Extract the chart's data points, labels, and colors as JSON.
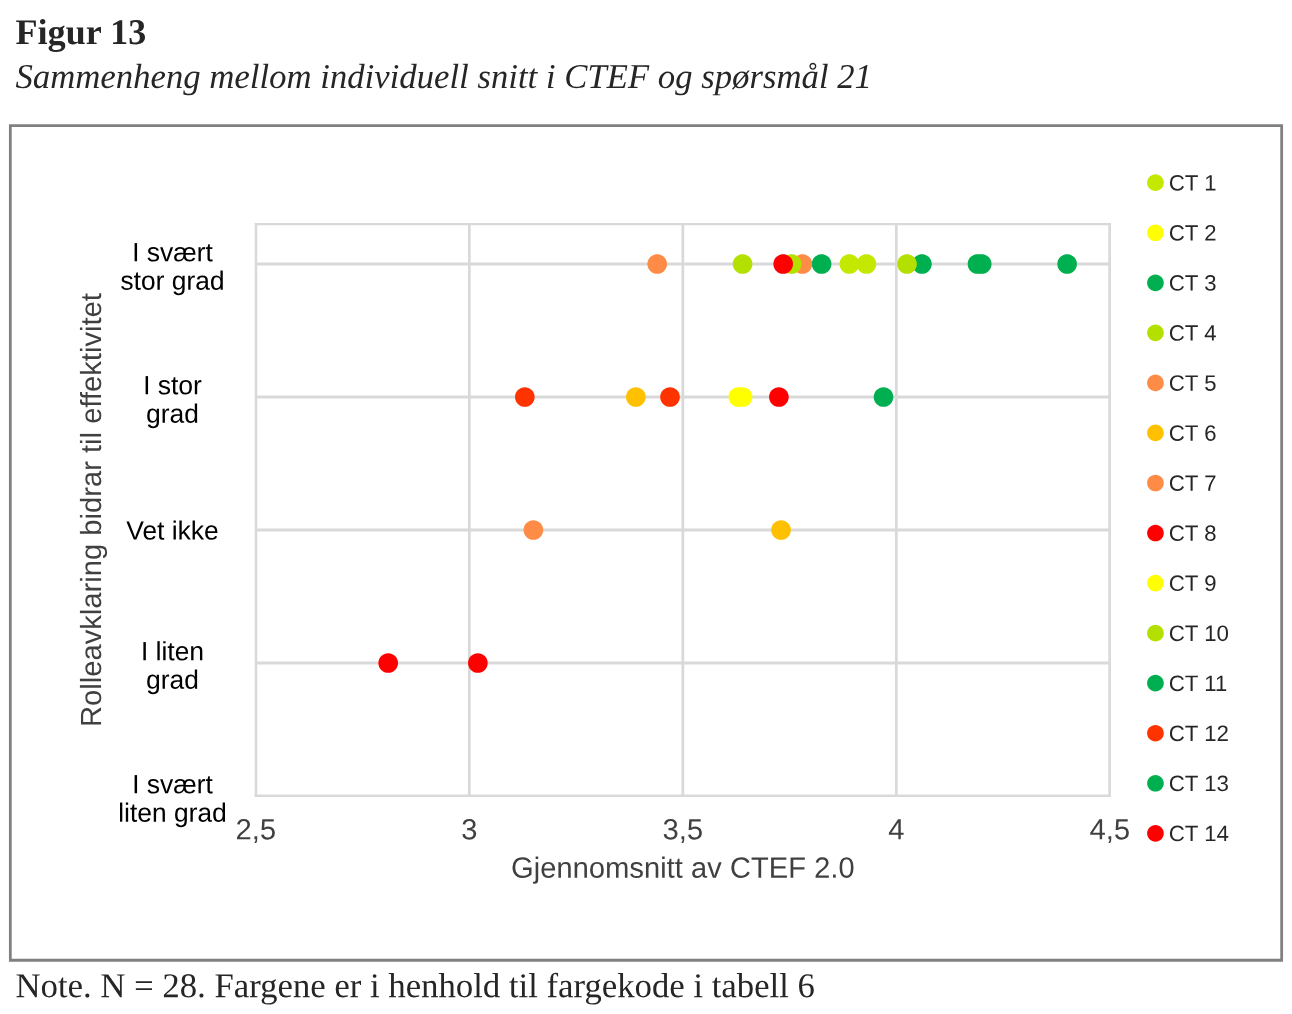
{
  "chart_data": {
    "type": "scatter",
    "orientation": "horizontal",
    "title": "Figur 13",
    "subtitle": "Sammenheng mellom individuell snitt i CTEF og spørsmål 21",
    "xlabel": "Gjennomsnitt av CTEF 2.0",
    "ylabel": "Rolleavklaring bidrar til effektivitet",
    "annotations": [
      "Note. N = 28. Fargene er i henhold til fargekode i tabell 6"
    ],
    "xlim": [
      2.5,
      4.5
    ],
    "xticks": [
      {
        "value": 2.5,
        "label": "2,5"
      },
      3,
      {
        "value": 3.5,
        "label": "3,5"
      },
      4,
      {
        "value": 4.5,
        "label": "4,5"
      }
    ],
    "categories": [
      "I svært stor grad",
      "I stor grad",
      "Vet ikke",
      "I liten grad",
      "I svært liten grad"
    ],
    "grid": true,
    "legend": "right",
    "marker": "circle",
    "series": [
      {
        "name": "CT 1",
        "color": "#c4e800",
        "values": [
          3.89,
          null,
          null,
          null,
          null
        ]
      },
      {
        "name": "CT 2",
        "color": "#ffff00",
        "values": [
          null,
          3.63,
          null,
          null,
          null
        ]
      },
      {
        "name": "CT 3",
        "color": "#00b050",
        "values": [
          3.825,
          null,
          null,
          null,
          null
        ]
      },
      {
        "name": "CT 4",
        "color": "#b4e000",
        "values": [
          3.64,
          null,
          null,
          null,
          null
        ]
      },
      {
        "name": "CT 5",
        "color": "#ff8c46",
        "values": [
          3.44,
          null,
          null,
          null,
          null
        ]
      },
      {
        "name": "CT 6",
        "color": "#ffc000",
        "values": [
          null,
          3.39,
          3.73,
          null,
          null
        ]
      },
      {
        "name": "CT 7",
        "color": "#ff8c46",
        "values": [
          3.78,
          null,
          3.15,
          null,
          null
        ]
      },
      {
        "name": "CT 8",
        "color": "#ff0000",
        "values": [
          null,
          3.725,
          null,
          2.81,
          null
        ]
      },
      {
        "name": "CT 9",
        "color": "#ffff00",
        "values": [
          null,
          3.64,
          null,
          null,
          null
        ]
      },
      {
        "name": "CT 10",
        "color": "#b4e000",
        "values": [
          3.755,
          null,
          null,
          null,
          null
        ]
      },
      {
        "name": "CT 11",
        "color": "#00b050",
        "values": [
          4.06,
          null,
          null,
          null,
          null
        ]
      },
      {
        "name": "CT 12",
        "color": "#ff3300",
        "values": [
          null,
          3.13,
          null,
          null,
          null
        ]
      },
      {
        "name": "CT 13",
        "color": "#00b050",
        "values": [
          4.19,
          3.97,
          null,
          null,
          null
        ]
      },
      {
        "name": "CT 14",
        "color": "#ff0000",
        "values": [
          3.735,
          null,
          null,
          3.02,
          null
        ]
      },
      {
        "color": "#c4e800",
        "values": [
          3.93,
          null,
          null,
          null,
          null
        ]
      },
      {
        "color": "#00b050",
        "values": [
          4.4,
          null,
          null,
          null,
          null
        ]
      },
      {
        "color": "#b4e000",
        "values": [
          4.025,
          null,
          null,
          null,
          null
        ]
      },
      {
        "color": "#00b050",
        "values": [
          4.2,
          null,
          null,
          null,
          null
        ]
      },
      {
        "color": "#ff3300",
        "values": [
          null,
          3.47,
          null,
          null,
          null
        ]
      }
    ]
  }
}
